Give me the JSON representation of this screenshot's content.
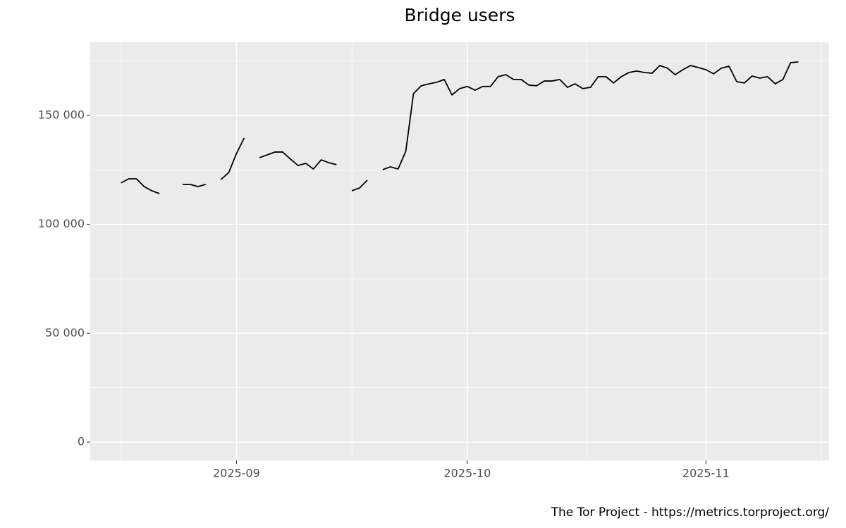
{
  "chart_data": {
    "type": "line",
    "title": "Bridge users",
    "caption": "The Tor Project - https://metrics.torproject.org/",
    "color": "#000000",
    "grid": true,
    "x": [
      "2025-08-17",
      "2025-08-18",
      "2025-08-19",
      "2025-08-20",
      "2025-08-21",
      "2025-08-22",
      "2025-08-23",
      "2025-08-24",
      "2025-08-25",
      "2025-08-26",
      "2025-08-27",
      "2025-08-28",
      "2025-08-29",
      "2025-08-30",
      "2025-08-31",
      "2025-09-01",
      "2025-09-02",
      "2025-09-03",
      "2025-09-04",
      "2025-09-05",
      "2025-09-06",
      "2025-09-07",
      "2025-09-08",
      "2025-09-09",
      "2025-09-10",
      "2025-09-11",
      "2025-09-12",
      "2025-09-13",
      "2025-09-14",
      "2025-09-15",
      "2025-09-16",
      "2025-09-17",
      "2025-09-18",
      "2025-09-19",
      "2025-09-20",
      "2025-09-21",
      "2025-09-22",
      "2025-09-23",
      "2025-09-24",
      "2025-09-25",
      "2025-09-26",
      "2025-09-27",
      "2025-09-28",
      "2025-09-29",
      "2025-09-30",
      "2025-10-01",
      "2025-10-02",
      "2025-10-03",
      "2025-10-04",
      "2025-10-05",
      "2025-10-06",
      "2025-10-07",
      "2025-10-08",
      "2025-10-09",
      "2025-10-10",
      "2025-10-11",
      "2025-10-12",
      "2025-10-13",
      "2025-10-14",
      "2025-10-15",
      "2025-10-16",
      "2025-10-17",
      "2025-10-18",
      "2025-10-19",
      "2025-10-20",
      "2025-10-21",
      "2025-10-22",
      "2025-10-23",
      "2025-10-24",
      "2025-10-25",
      "2025-10-26",
      "2025-10-27",
      "2025-10-28",
      "2025-10-29",
      "2025-10-30",
      "2025-10-31",
      "2025-11-01",
      "2025-11-02",
      "2025-11-03",
      "2025-11-04",
      "2025-11-05",
      "2025-11-06",
      "2025-11-07",
      "2025-11-08",
      "2025-11-09",
      "2025-11-10",
      "2025-11-11",
      "2025-11-12",
      "2025-11-13"
    ],
    "values": [
      119000,
      120900,
      120900,
      117350,
      115400,
      114100,
      null,
      null,
      118300,
      118300,
      117350,
      118300,
      null,
      120600,
      123800,
      132500,
      139650,
      null,
      130600,
      131900,
      133200,
      133200,
      130000,
      127000,
      128000,
      125400,
      129600,
      128300,
      127400,
      null,
      115400,
      116700,
      120300,
      null,
      125100,
      126400,
      125400,
      133500,
      160000,
      163600,
      164500,
      165200,
      166500,
      159400,
      162300,
      163300,
      161600,
      163300,
      163300,
      167800,
      168700,
      166500,
      166500,
      163900,
      163600,
      165800,
      165800,
      166500,
      162900,
      164500,
      162300,
      162900,
      167800,
      167800,
      164900,
      167800,
      169700,
      170400,
      169700,
      169400,
      172900,
      171700,
      168700,
      171000,
      172900,
      172000,
      171000,
      169100,
      171700,
      172600,
      165500,
      164900,
      168100,
      167100,
      167800,
      164500,
      166500,
      174200,
      174600
    ],
    "xlim": [
      "2025-08-13",
      "2025-11-17"
    ],
    "xticks": [
      {
        "value": "2025-09-01",
        "label": "2025-09"
      },
      {
        "value": "2025-10-01",
        "label": "2025-10"
      },
      {
        "value": "2025-11-01",
        "label": "2025-11"
      }
    ],
    "ylim": [
      -8400,
      183600
    ],
    "yticks": [
      0,
      {
        "value": 50000,
        "label": "50 000"
      },
      {
        "value": 100000,
        "label": "100 000"
      },
      {
        "value": 150000,
        "label": "150 000"
      }
    ]
  }
}
